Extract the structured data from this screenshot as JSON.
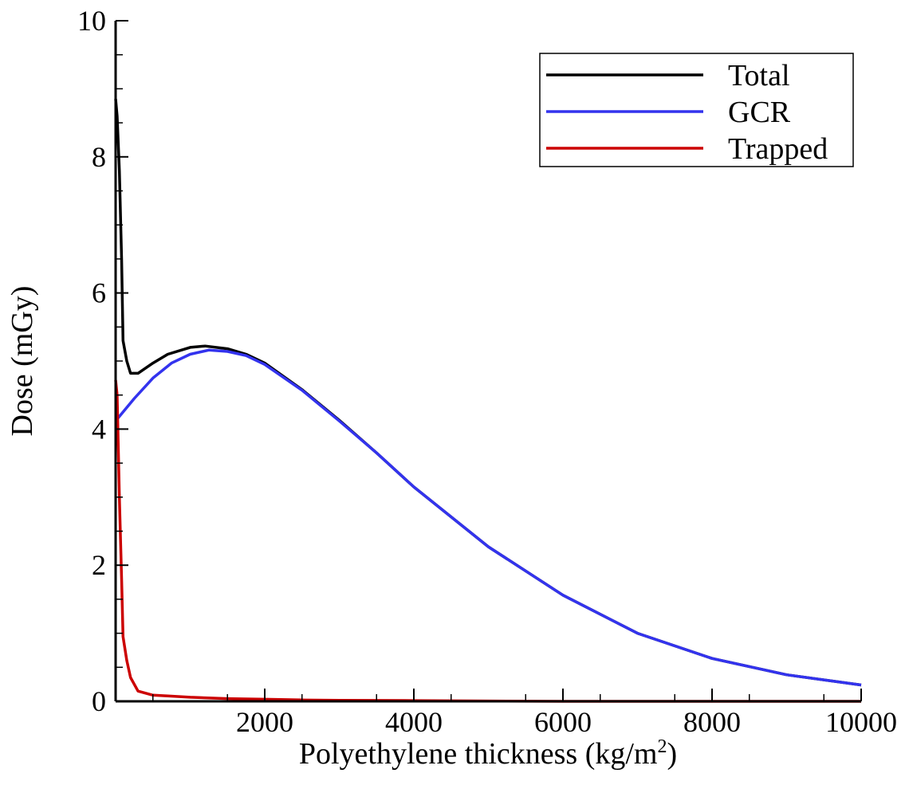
{
  "chart_data": {
    "type": "line",
    "title": "",
    "xlabel": "Polyethylene thickness (kg/m",
    "xlabel_sup": "2",
    "xlabel_suffix": ")",
    "ylabel": "Dose (mGy)",
    "xlim": [
      0,
      10000
    ],
    "ylim": [
      0,
      10
    ],
    "grid": false,
    "legend_position": "top-right",
    "x_ticks": [
      2000,
      4000,
      6000,
      8000,
      10000
    ],
    "x_tick_labels": [
      "2000",
      "4000",
      "6000",
      "8000",
      "10000"
    ],
    "y_ticks": [
      0,
      2,
      4,
      6,
      8,
      10
    ],
    "y_tick_labels": [
      "0",
      "2",
      "4",
      "6",
      "8",
      "10"
    ],
    "series": [
      {
        "name": "Total",
        "color": "#000000",
        "points": [
          [
            0,
            8.85
          ],
          [
            20,
            8.6
          ],
          [
            50,
            7.8
          ],
          [
            80,
            6.5
          ],
          [
            100,
            5.3
          ],
          [
            150,
            5.0
          ],
          [
            200,
            4.82
          ],
          [
            300,
            4.82
          ],
          [
            500,
            4.97
          ],
          [
            700,
            5.1
          ],
          [
            1000,
            5.2
          ],
          [
            1200,
            5.22
          ],
          [
            1500,
            5.18
          ],
          [
            1750,
            5.1
          ],
          [
            2000,
            4.97
          ],
          [
            2500,
            4.58
          ],
          [
            3000,
            4.13
          ],
          [
            3500,
            3.65
          ],
          [
            4000,
            3.15
          ],
          [
            5000,
            2.27
          ],
          [
            6000,
            1.56
          ],
          [
            7000,
            1.0
          ],
          [
            8000,
            0.63
          ],
          [
            9000,
            0.39
          ],
          [
            10000,
            0.24
          ]
        ]
      },
      {
        "name": "GCR",
        "color": "#3333ee",
        "points": [
          [
            0,
            4.12
          ],
          [
            100,
            4.25
          ],
          [
            250,
            4.45
          ],
          [
            500,
            4.75
          ],
          [
            750,
            4.97
          ],
          [
            1000,
            5.1
          ],
          [
            1250,
            5.16
          ],
          [
            1500,
            5.14
          ],
          [
            1750,
            5.08
          ],
          [
            2000,
            4.95
          ],
          [
            2500,
            4.57
          ],
          [
            3000,
            4.12
          ],
          [
            3500,
            3.65
          ],
          [
            4000,
            3.15
          ],
          [
            5000,
            2.27
          ],
          [
            6000,
            1.56
          ],
          [
            7000,
            1.0
          ],
          [
            8000,
            0.63
          ],
          [
            9000,
            0.39
          ],
          [
            10000,
            0.24
          ]
        ]
      },
      {
        "name": "Trapped",
        "color": "#cc0000",
        "points": [
          [
            0,
            4.72
          ],
          [
            20,
            4.5
          ],
          [
            50,
            3.0
          ],
          [
            80,
            1.8
          ],
          [
            100,
            0.95
          ],
          [
            150,
            0.6
          ],
          [
            200,
            0.35
          ],
          [
            300,
            0.15
          ],
          [
            500,
            0.09
          ],
          [
            700,
            0.08
          ],
          [
            1000,
            0.06
          ],
          [
            1500,
            0.04
          ],
          [
            2000,
            0.03
          ],
          [
            2500,
            0.02
          ],
          [
            3000,
            0.015
          ],
          [
            4000,
            0.01
          ],
          [
            5000,
            0.005
          ],
          [
            6000,
            0.0
          ],
          [
            10000,
            0.0
          ]
        ]
      }
    ]
  }
}
